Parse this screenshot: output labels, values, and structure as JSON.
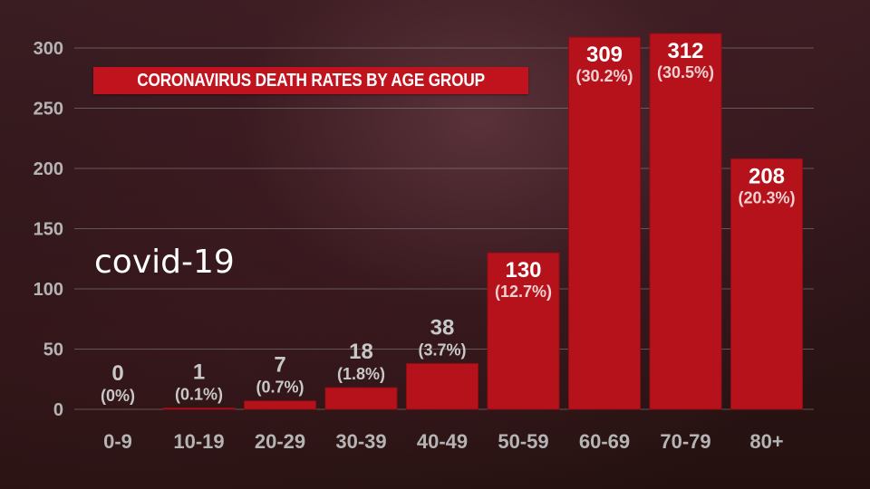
{
  "caption": "covid-19",
  "chart_data": {
    "type": "bar",
    "title": "CORONAVIRUS DEATH RATES BY AGE GROUP",
    "categories": [
      "0-9",
      "10-19",
      "20-29",
      "30-39",
      "40-49",
      "50-59",
      "60-69",
      "70-79",
      "80+"
    ],
    "values": [
      0,
      1,
      7,
      18,
      38,
      130,
      309,
      312,
      208
    ],
    "percent_labels": [
      "(0%)",
      "(0.1%)",
      "(0.7%)",
      "(1.8%)",
      "(3.7%)",
      "(12.7%)",
      "(30.2%)",
      "(30.5%)",
      "(20.3%)"
    ],
    "yticks": [
      0,
      50,
      100,
      150,
      200,
      250,
      300
    ],
    "ylim": [
      0,
      300
    ],
    "grid": true,
    "colors": {
      "bar": "#b5121c",
      "bar_edge": "#8e0d15",
      "grid": "#8a8a8a",
      "tick_text": "#b4b4b4",
      "value_text_on_bar": "#ffffff",
      "value_text_outside": "#c8c8c8",
      "pct_text_on_bar": "#f0d0d0"
    }
  }
}
